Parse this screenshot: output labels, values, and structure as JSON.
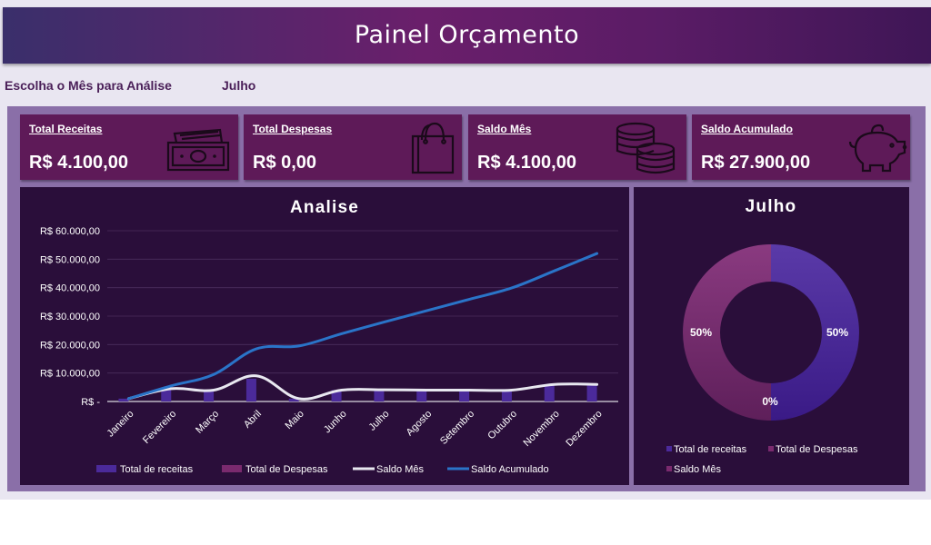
{
  "header": {
    "title": "Painel Orçamento"
  },
  "selector": {
    "label": "Escolha o Mês para Análise",
    "value": "Julho"
  },
  "cards": [
    {
      "label": "Total Receitas",
      "value": "R$ 4.100,00",
      "icon": "money-icon"
    },
    {
      "label": "Total Despesas",
      "value": "R$ 0,00",
      "icon": "shopping-bag-icon"
    },
    {
      "label": "Saldo Mês",
      "value": "R$ 4.100,00",
      "icon": "coins-icon"
    },
    {
      "label": "Saldo Acumulado",
      "value": "R$ 27.900,00",
      "icon": "piggy-bank-icon"
    }
  ],
  "colors": {
    "card_bg": "#5e1a58",
    "chart_bg": "#2a0e3a",
    "receitas": "#4b2a9a",
    "despesas": "#7a2a6e",
    "saldo_mes": "#e8e8f0",
    "saldo_acumulado": "#2a74c8"
  },
  "chart_data": [
    {
      "type": "line",
      "title": "Analise",
      "categories": [
        "Janeiro",
        "Fevereiro",
        "Março",
        "Abril",
        "Maio",
        "Junho",
        "Julho",
        "Agosto",
        "Setembro",
        "Outubro",
        "Novembro",
        "Dezembro"
      ],
      "series": [
        {
          "name": "Total de receitas",
          "kind": "bar",
          "values": [
            1000,
            4000,
            4000,
            8000,
            1000,
            4000,
            4100,
            4000,
            4000,
            4000,
            6000,
            6000
          ]
        },
        {
          "name": "Total de Despesas",
          "kind": "bar",
          "values": [
            0,
            0,
            0,
            0,
            0,
            0,
            0,
            0,
            0,
            0,
            0,
            0
          ]
        },
        {
          "name": "Saldo Mês",
          "kind": "line",
          "values": [
            1000,
            4500,
            4000,
            9000,
            1000,
            4000,
            4100,
            4000,
            4000,
            4000,
            6000,
            6000
          ]
        },
        {
          "name": "Saldo Acumulado",
          "kind": "line",
          "values": [
            1000,
            5500,
            9500,
            18500,
            19500,
            23800,
            27900,
            31900,
            35900,
            39900,
            45900,
            52000
          ]
        }
      ],
      "yticks": [
        "R$ 60.000,00",
        "R$ 50.000,00",
        "R$ 40.000,00",
        "R$ 30.000,00",
        "R$ 20.000,00",
        "R$ 10.000,00",
        "R$ -"
      ],
      "ylim": [
        0,
        60000
      ],
      "legend": "bottom"
    },
    {
      "type": "pie",
      "title": "Julho",
      "donut": true,
      "slices": [
        {
          "name": "Total de receitas",
          "value": 50,
          "label": "50%"
        },
        {
          "name": "Total de Despesas",
          "value": 0,
          "label": "0%"
        },
        {
          "name": "Saldo Mês",
          "value": 50,
          "label": "50%"
        }
      ],
      "legend": "bottom"
    }
  ]
}
